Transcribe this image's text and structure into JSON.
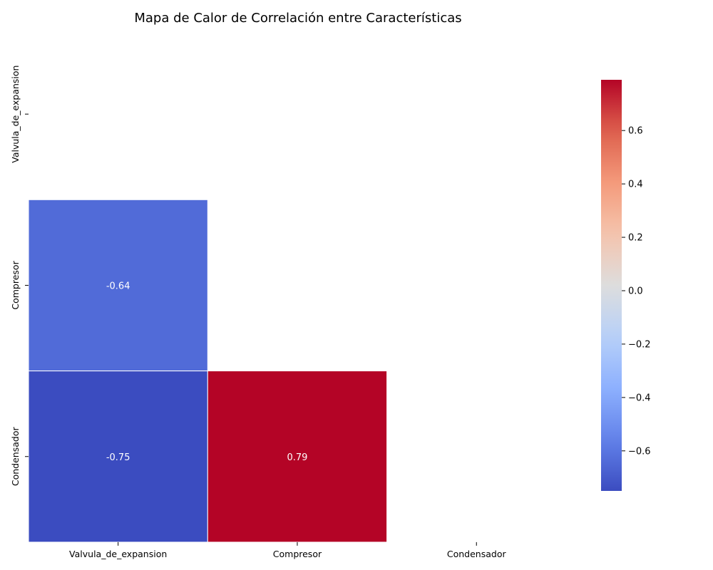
{
  "chart_data": {
    "type": "heatmap",
    "title": "Mapa de Calor de Correlación entre Características",
    "xlabel": "",
    "ylabel": "",
    "variables": [
      "Valvula_de_expansion",
      "Compresor",
      "Condensador"
    ],
    "mask": "upper-triangle-including-diagonal",
    "cells": [
      {
        "row": 1,
        "col": 0,
        "value": -0.64,
        "label": "-0.64"
      },
      {
        "row": 2,
        "col": 0,
        "value": -0.75,
        "label": "-0.75"
      },
      {
        "row": 2,
        "col": 1,
        "value": 0.79,
        "label": "0.79"
      }
    ],
    "colormap": "coolwarm",
    "colorbar": {
      "range": [
        -0.75,
        0.79
      ],
      "ticks": [
        -0.6,
        -0.4,
        -0.2,
        0.0,
        0.2,
        0.4,
        0.6
      ],
      "tick_labels": [
        "−0.6",
        "−0.4",
        "−0.2",
        "0.0",
        "0.2",
        "0.4",
        "0.6"
      ]
    },
    "grid": false
  }
}
